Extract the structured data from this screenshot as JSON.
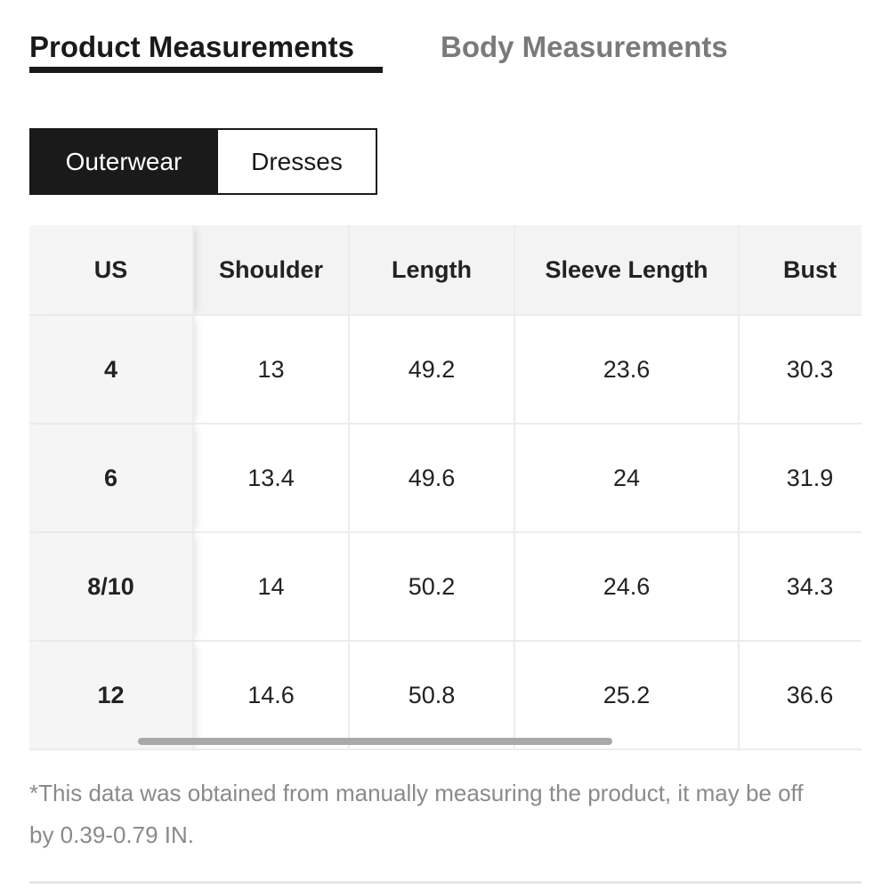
{
  "tabs": [
    "Product Measurements",
    "Body Measurements"
  ],
  "categories": [
    "Outerwear",
    "Dresses"
  ],
  "table": {
    "headers": [
      "US",
      "Shoulder",
      "Length",
      "Sleeve Length",
      "Bust"
    ],
    "rows": [
      [
        "4",
        13,
        49.2,
        23.6,
        30.3
      ],
      [
        "6",
        13.4,
        49.6,
        24,
        31.9
      ],
      [
        "8/10",
        14,
        50.2,
        24.6,
        34.3
      ],
      [
        "12",
        14.6,
        50.8,
        25.2,
        36.6
      ]
    ]
  },
  "footnote": "*This data was obtained from manually measuring the product, it may be off by 0.39-0.79 IN."
}
